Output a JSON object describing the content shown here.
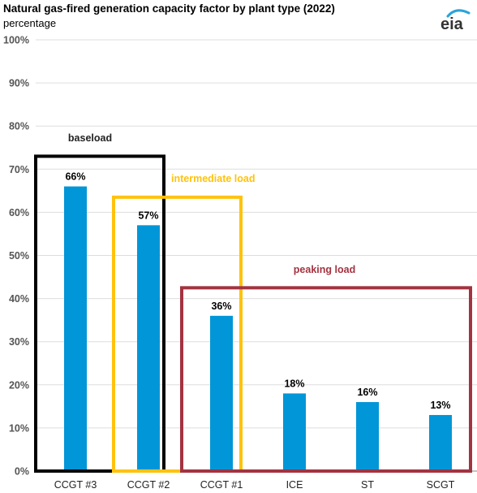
{
  "header": {
    "title": "Natural gas-fired generation capacity factor by plant type (2022)",
    "subtitle": "percentage",
    "logo_text": "eia"
  },
  "colors": {
    "bar": "#0096d7",
    "baseload": "#000000",
    "intermediate": "#ffc20e",
    "peaking": "#a33340",
    "grid": "#dddddd",
    "logo_arc": "#2ba3d9"
  },
  "chart_data": {
    "type": "bar",
    "title": "Natural gas-fired generation capacity factor by plant type (2022)",
    "ylabel": "percentage",
    "xlabel": "",
    "categories": [
      "CCGT #3",
      "CCGT #2",
      "CCGT #1",
      "ICE",
      "ST",
      "SCGT"
    ],
    "values": [
      66,
      57,
      36,
      18,
      16,
      13
    ],
    "data_labels": [
      "66%",
      "57%",
      "36%",
      "18%",
      "16%",
      "13%"
    ],
    "ylim": [
      0,
      100
    ],
    "yticks": [
      0,
      10,
      20,
      30,
      40,
      50,
      60,
      70,
      80,
      90,
      100
    ],
    "ytick_labels": [
      "0%",
      "10%",
      "20%",
      "30%",
      "40%",
      "50%",
      "60%",
      "70%",
      "80%",
      "90%",
      "100%"
    ],
    "grid": true,
    "annotations": [
      {
        "label": "baseload",
        "color": "#000000",
        "categories": [
          "CCGT #3",
          "CCGT #2"
        ],
        "top_value": 73
      },
      {
        "label": "intermediate load",
        "color": "#ffc20e",
        "categories": [
          "CCGT #2",
          "CCGT #1"
        ],
        "top_value": 63.5
      },
      {
        "label": "peaking load",
        "color": "#a33340",
        "categories": [
          "CCGT #1",
          "ICE",
          "ST",
          "SCGT"
        ],
        "top_value": 42.5
      }
    ]
  }
}
